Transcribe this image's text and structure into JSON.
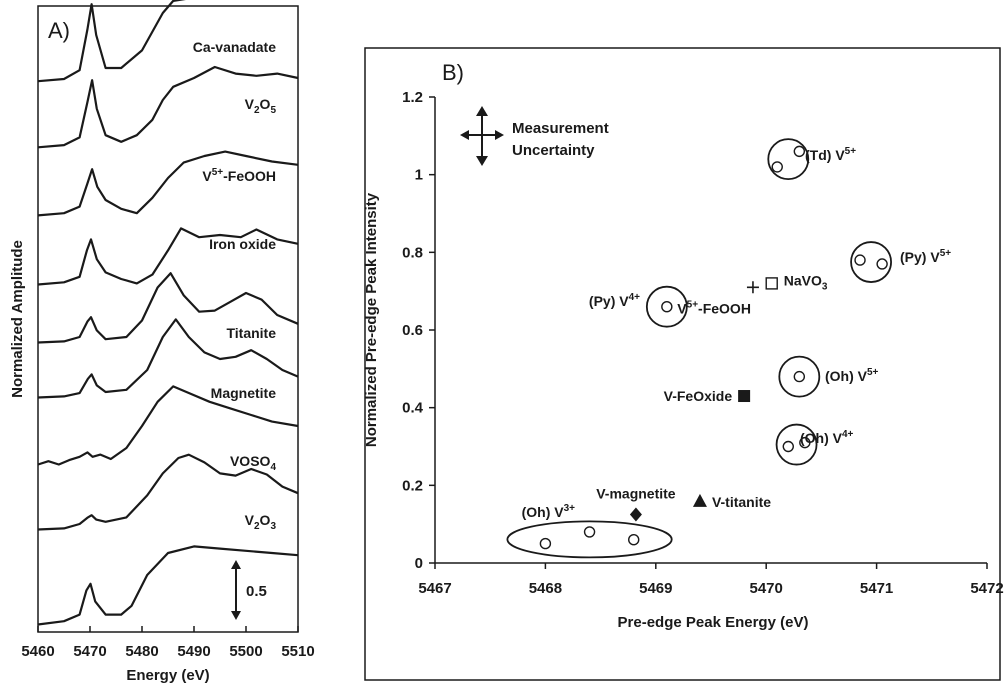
{
  "panel_a": {
    "label": "A)",
    "xlabel": "Energy (eV)",
    "ylabel": "Normalized Amplitude",
    "scale_bar": "0.5",
    "chart_data": {
      "type": "line",
      "xlim": [
        5460,
        5510
      ],
      "x_ticks": [
        "5460",
        "5470",
        "5480",
        "5490",
        "5500",
        "5510"
      ],
      "series": [
        {
          "name": "Ca-vanadate",
          "name_main": "Ca-vanadate",
          "name_sup": "",
          "name_sub": "",
          "name_tail": "",
          "x": [
            5460,
            5465,
            5468,
            5469.5,
            5470.3,
            5471.2,
            5473,
            5476,
            5480,
            5484,
            5486,
            5490,
            5494,
            5498,
            5502,
            5506,
            5510
          ],
          "y": [
            0.08,
            0.1,
            0.18,
            0.55,
            0.78,
            0.5,
            0.2,
            0.2,
            0.36,
            0.7,
            0.81,
            0.84,
            0.86,
            0.88,
            0.9,
            0.94,
            0.92
          ]
        },
        {
          "name": "V2O5",
          "name_main": "V",
          "name_sup": "",
          "name_sub": "2",
          "name_tail": "O5",
          "x": [
            5460,
            5465,
            5468,
            5469.5,
            5470.4,
            5471.3,
            5473,
            5476,
            5479,
            5482,
            5484,
            5486,
            5490,
            5494,
            5498,
            5502,
            5506,
            5510
          ],
          "y": [
            0.07,
            0.09,
            0.16,
            0.48,
            0.68,
            0.42,
            0.18,
            0.12,
            0.18,
            0.32,
            0.5,
            0.62,
            0.7,
            0.8,
            0.74,
            0.72,
            0.74,
            0.7
          ]
        },
        {
          "name": "V5+-FeOOH",
          "name_main": "V",
          "name_sup": "5+",
          "name_sub": "",
          "name_tail": "-FeOOH",
          "x": [
            5460,
            5465,
            5468,
            5469.5,
            5470.4,
            5471.4,
            5473,
            5476,
            5479,
            5482,
            5485,
            5488,
            5492,
            5496,
            5500,
            5505,
            5510
          ],
          "y": [
            0.06,
            0.08,
            0.14,
            0.35,
            0.48,
            0.32,
            0.2,
            0.12,
            0.08,
            0.22,
            0.4,
            0.54,
            0.6,
            0.64,
            0.6,
            0.55,
            0.52
          ]
        },
        {
          "name": "Iron oxide",
          "name_main": "Iron oxide",
          "name_sup": "",
          "name_sub": "",
          "name_tail": "",
          "x": [
            5460,
            5465,
            5468,
            5469.4,
            5470.2,
            5471.3,
            5473,
            5476,
            5479,
            5482,
            5485,
            5487.5,
            5491,
            5495,
            5499,
            5502,
            5506,
            5510
          ],
          "y": [
            0.05,
            0.07,
            0.12,
            0.36,
            0.46,
            0.28,
            0.16,
            0.1,
            0.06,
            0.14,
            0.36,
            0.56,
            0.48,
            0.5,
            0.48,
            0.55,
            0.46,
            0.42
          ]
        },
        {
          "name": "Titanite",
          "name_main": "Titanite",
          "name_sup": "",
          "name_sub": "",
          "name_tail": "",
          "x": [
            5460,
            5465,
            5468,
            5469.5,
            5470.2,
            5471.3,
            5473,
            5477,
            5480,
            5483,
            5485.5,
            5488,
            5491,
            5494,
            5497,
            5500,
            5503,
            5506,
            5510
          ],
          "y": [
            0.05,
            0.06,
            0.1,
            0.24,
            0.28,
            0.16,
            0.08,
            0.1,
            0.25,
            0.55,
            0.68,
            0.48,
            0.33,
            0.34,
            0.42,
            0.5,
            0.44,
            0.3,
            0.22
          ]
        },
        {
          "name": "Magnetite",
          "name_main": "Magnetite",
          "name_sup": "",
          "name_sub": "",
          "name_tail": "",
          "x": [
            5460,
            5465,
            5468,
            5469.6,
            5470.3,
            5471.3,
            5473,
            5477,
            5481,
            5484,
            5486.5,
            5489,
            5492,
            5495,
            5498,
            5501,
            5504,
            5507,
            5510
          ],
          "y": [
            0.05,
            0.06,
            0.09,
            0.22,
            0.26,
            0.16,
            0.1,
            0.12,
            0.3,
            0.6,
            0.76,
            0.6,
            0.46,
            0.4,
            0.42,
            0.48,
            0.4,
            0.3,
            0.24
          ]
        },
        {
          "name": "VOSO4",
          "name_main": "VOSO",
          "name_sup": "",
          "name_sub": "4",
          "name_tail": "",
          "x": [
            5460,
            5462,
            5464,
            5466,
            5468,
            5469.5,
            5470.5,
            5472,
            5474,
            5477,
            5480,
            5483,
            5486,
            5489,
            5493,
            5497,
            5501,
            5505,
            5510
          ],
          "y": [
            0.05,
            0.08,
            0.05,
            0.09,
            0.12,
            0.16,
            0.12,
            0.14,
            0.1,
            0.2,
            0.4,
            0.62,
            0.76,
            0.7,
            0.62,
            0.56,
            0.5,
            0.44,
            0.4
          ]
        },
        {
          "name": "V2O3",
          "name_main": "V",
          "name_sup": "",
          "name_sub": "2",
          "name_tail": "O3",
          "x": [
            5460,
            5465,
            5468,
            5469.6,
            5470.3,
            5471.2,
            5473,
            5477,
            5481,
            5484,
            5487,
            5489,
            5492,
            5495,
            5498,
            5501,
            5504,
            5507,
            5510
          ],
          "y": [
            0.05,
            0.06,
            0.1,
            0.16,
            0.18,
            0.14,
            0.12,
            0.16,
            0.36,
            0.56,
            0.7,
            0.73,
            0.66,
            0.56,
            0.54,
            0.6,
            0.55,
            0.44,
            0.38
          ]
        },
        {
          "name": "",
          "name_main": "",
          "name_sup": "",
          "name_sub": "",
          "name_tail": "",
          "x": [
            5460,
            5465,
            5468,
            5469.3,
            5470.1,
            5471,
            5473,
            5476,
            5478,
            5481,
            5485,
            5490,
            5495,
            5500,
            5505,
            5510
          ],
          "y": [
            0.05,
            0.08,
            0.14,
            0.36,
            0.42,
            0.26,
            0.14,
            0.14,
            0.22,
            0.5,
            0.7,
            0.76,
            0.74,
            0.72,
            0.7,
            0.68
          ]
        }
      ]
    }
  },
  "panel_b": {
    "label": "B)",
    "xlabel": "Pre-edge Peak Energy (eV)",
    "ylabel": "Normalized Pre-edge Peak Intensity",
    "uncertainty_label_1": "Measurement",
    "uncertainty_label_2": "Uncertainty",
    "chart_data": {
      "type": "scatter",
      "xlim": [
        5467,
        5472
      ],
      "ylim": [
        0,
        1.2
      ],
      "x_ticks": [
        "5467",
        "5468",
        "5469",
        "5470",
        "5471",
        "5472"
      ],
      "y_ticks": [
        "0",
        "0.2",
        "0.4",
        "0.6",
        "0.8",
        "1",
        "1.2"
      ],
      "reference_groups": [
        {
          "label": "(Td) V",
          "sup": "5+",
          "points": [
            [
              5470.1,
              1.02
            ],
            [
              5470.3,
              1.06
            ]
          ]
        },
        {
          "label": "(Py) V",
          "sup": "5+",
          "points": [
            [
              5470.85,
              0.78
            ],
            [
              5471.05,
              0.77
            ]
          ]
        },
        {
          "label": "(Py) V",
          "sup": "4+",
          "points": [
            [
              5469.1,
              0.66
            ]
          ]
        },
        {
          "label": "(Oh) V",
          "sup": "5+",
          "points": [
            [
              5470.3,
              0.48
            ]
          ]
        },
        {
          "label": "(Oh) V",
          "sup": "4+",
          "points": [
            [
              5470.2,
              0.3
            ],
            [
              5470.35,
              0.31
            ]
          ]
        },
        {
          "label": "(Oh) V",
          "sup": "3+",
          "points": [
            [
              5468.0,
              0.05
            ],
            [
              5468.4,
              0.08
            ],
            [
              5468.8,
              0.06
            ]
          ]
        }
      ],
      "samples": [
        {
          "label": "NaVO",
          "sub": "3",
          "marker": "open-square",
          "x": 5470.05,
          "y": 0.72
        },
        {
          "label": "V5+-FeOOH",
          "label_main": "V",
          "label_sup": "5+",
          "label_tail": "-FeOOH",
          "marker": "plus",
          "x": 5469.88,
          "y": 0.71
        },
        {
          "label": "V-FeOxide",
          "marker": "filled-square",
          "x": 5469.8,
          "y": 0.43
        },
        {
          "label": "V-magnetite",
          "marker": "filled-diamond",
          "x": 5468.82,
          "y": 0.125
        },
        {
          "label": "V-titanite",
          "marker": "filled-triangle",
          "x": 5469.4,
          "y": 0.16
        }
      ]
    }
  }
}
